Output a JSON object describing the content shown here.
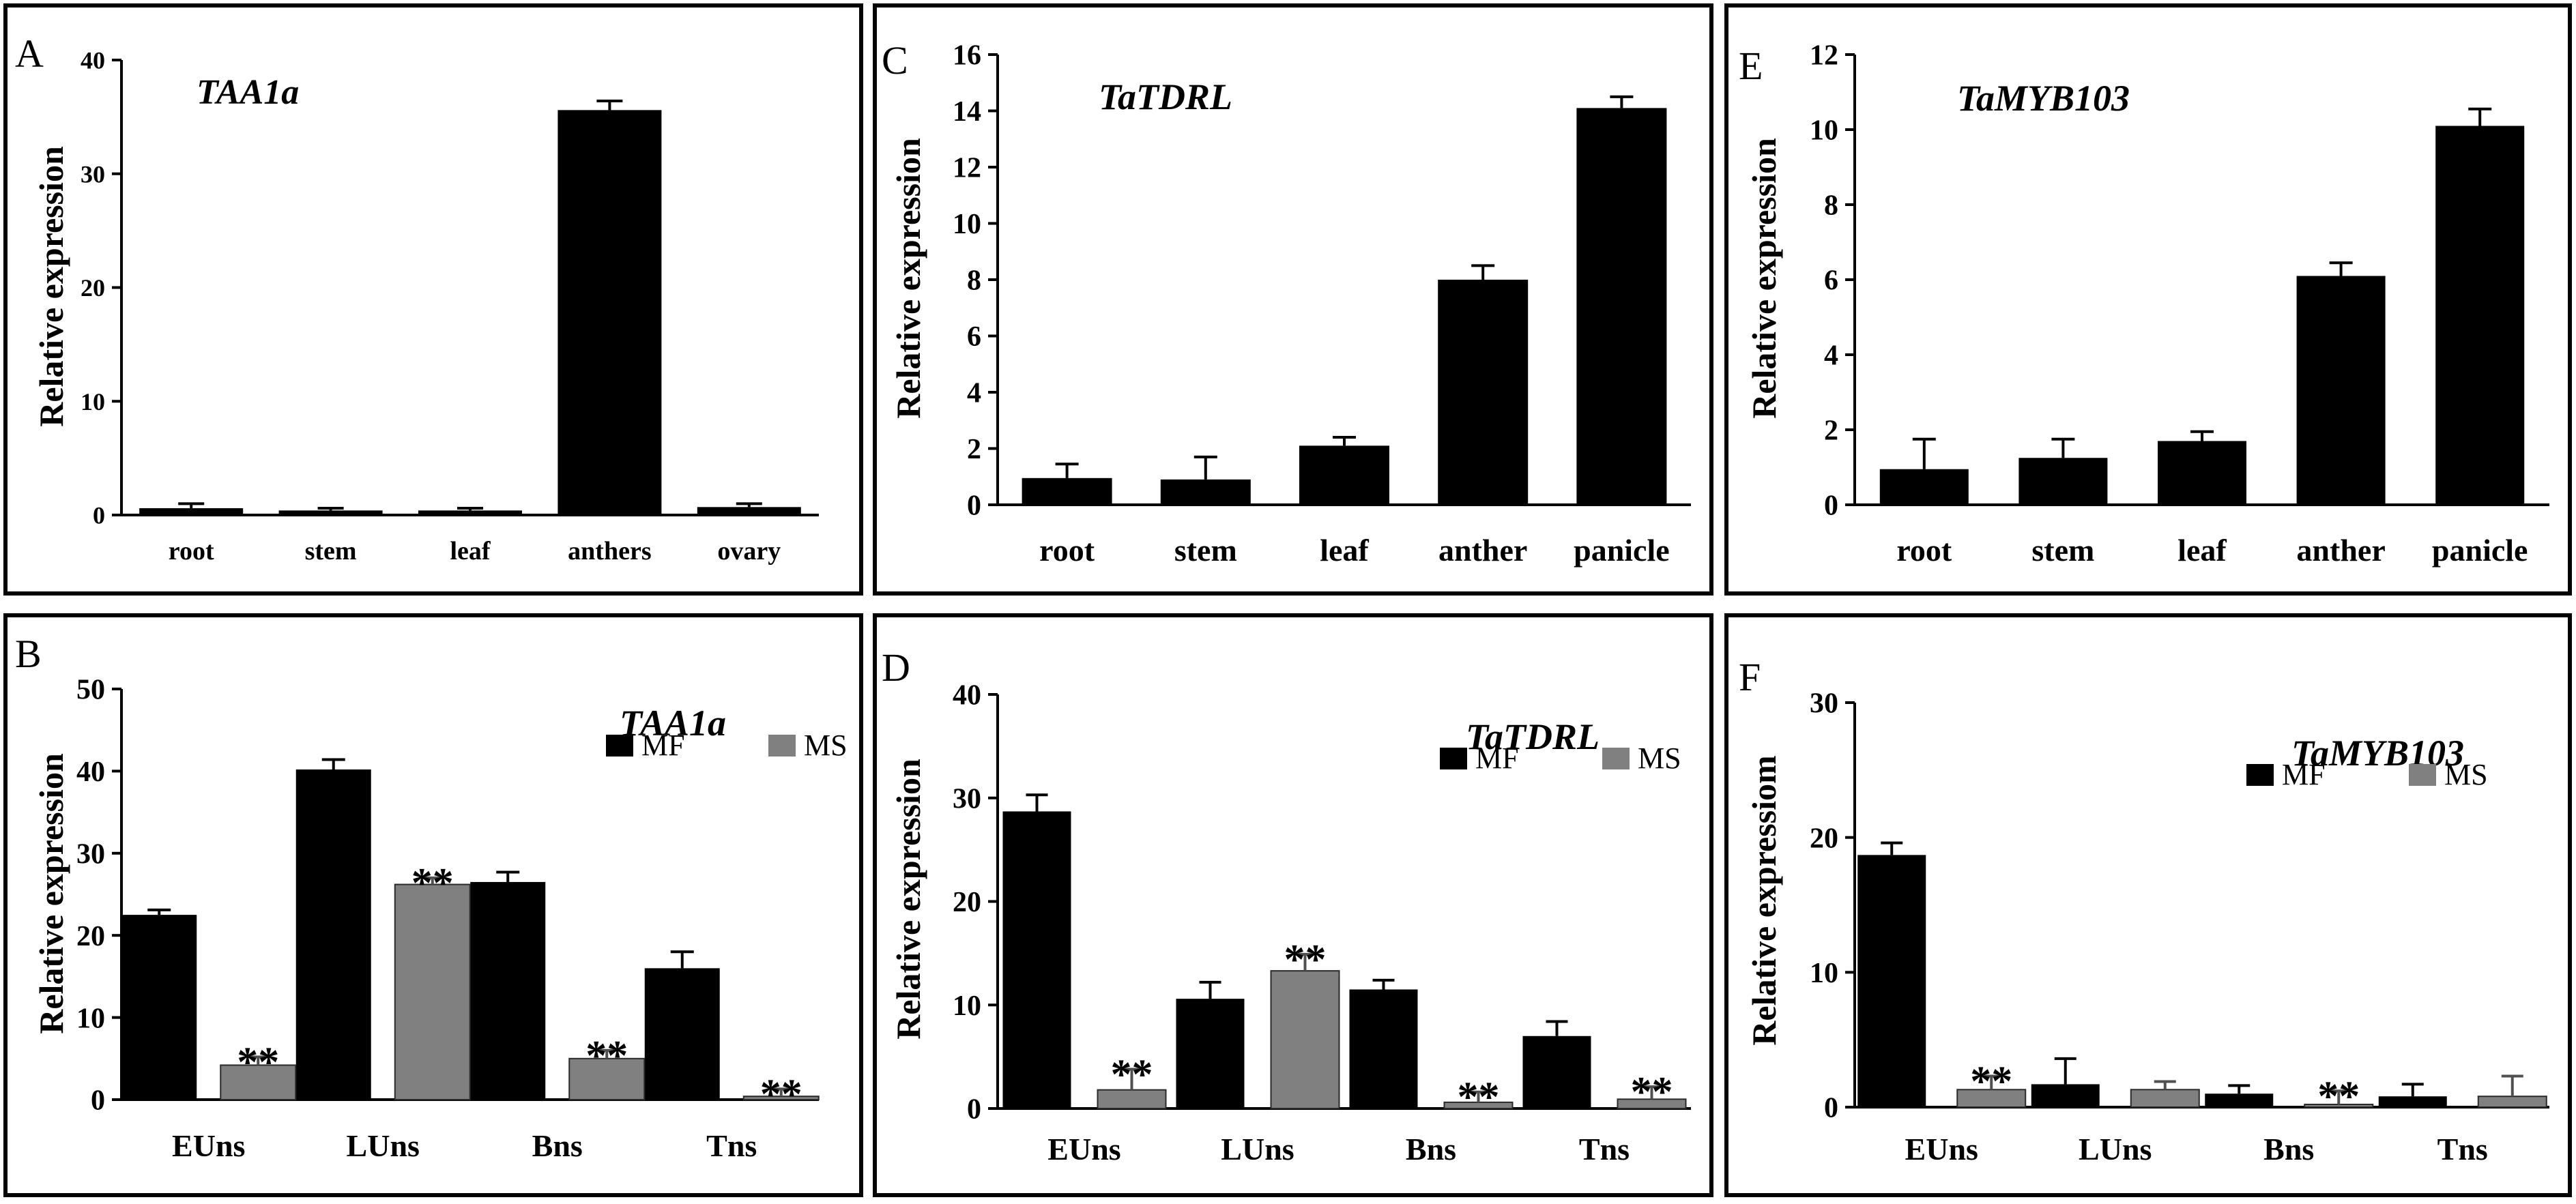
{
  "colors": {
    "mf": "#000000",
    "ms": "#808080",
    "ms_bar_edge": "#2a2a2a",
    "ms_err": "#505050",
    "frame": "#000000"
  },
  "chart_data": [
    {
      "panel": "A",
      "type": "bar",
      "title": "TAA1a",
      "ylabel": "Relative expression",
      "xlabel": "",
      "ylim": [
        0,
        40
      ],
      "yticks": [
        "0",
        "10",
        "20",
        "30",
        "40"
      ],
      "categories": [
        "root",
        "stem",
        "leaf",
        "anthers",
        "ovary"
      ],
      "series": [
        {
          "name": "",
          "values": [
            0.6,
            0.4,
            0.4,
            35.6,
            0.7
          ],
          "errors": [
            0.4,
            0.2,
            0.2,
            0.8,
            0.3
          ]
        }
      ],
      "significance": [],
      "legend": []
    },
    {
      "panel": "B",
      "type": "bar",
      "title": "TAA1a",
      "ylabel": "Relative expression",
      "xlabel": "",
      "ylim": [
        0,
        50
      ],
      "yticks": [
        "0",
        "10",
        "20",
        "30",
        "40",
        "50"
      ],
      "categories": [
        "EUns",
        "LUns",
        "Bns",
        "Tns"
      ],
      "series": [
        {
          "name": "MF",
          "values": [
            22.5,
            40.2,
            26.5,
            16.0
          ],
          "errors": [
            0.6,
            1.2,
            1.2,
            2.0
          ]
        },
        {
          "name": "MS",
          "values": [
            4.2,
            26.2,
            5.0,
            0.4
          ],
          "errors": [
            1.0,
            0.8,
            1.0,
            0.9
          ]
        }
      ],
      "significance": [
        "**",
        "**",
        "**",
        "**"
      ],
      "legend": [
        "MF",
        "MS"
      ]
    },
    {
      "panel": "C",
      "type": "bar",
      "title": "TaTDRL",
      "ylabel": "Relative expression",
      "xlabel": "",
      "ylim": [
        0,
        16
      ],
      "yticks": [
        "0",
        "2",
        "4",
        "6",
        "8",
        "10",
        "12",
        "14",
        "16"
      ],
      "categories": [
        "root",
        "stem",
        "leaf",
        "anther",
        "panicle"
      ],
      "series": [
        {
          "name": "",
          "values": [
            0.95,
            0.9,
            2.1,
            8.0,
            14.1
          ],
          "errors": [
            0.5,
            0.8,
            0.3,
            0.5,
            0.4
          ]
        }
      ],
      "significance": [],
      "legend": []
    },
    {
      "panel": "D",
      "type": "bar",
      "title": "TaTDRL",
      "ylabel": "Relative expression",
      "xlabel": "",
      "ylim": [
        0,
        40
      ],
      "yticks": [
        "0",
        "10",
        "20",
        "30",
        "40"
      ],
      "categories": [
        "EUns",
        "LUns",
        "Bns",
        "Tns"
      ],
      "series": [
        {
          "name": "MF",
          "values": [
            28.7,
            10.6,
            11.5,
            7.0
          ],
          "errors": [
            1.6,
            1.6,
            0.9,
            1.4
          ]
        },
        {
          "name": "MS",
          "values": [
            1.8,
            13.3,
            0.6,
            0.9
          ],
          "errors": [
            2.0,
            1.6,
            1.0,
            1.2
          ]
        }
      ],
      "significance": [
        "**",
        "**",
        "**",
        "**"
      ],
      "legend": [
        "MF",
        "MS"
      ]
    },
    {
      "panel": "E",
      "type": "bar",
      "title": "TaMYB103",
      "ylabel": "Relative expression",
      "xlabel": "",
      "ylim": [
        0,
        12
      ],
      "yticks": [
        "0",
        "2",
        "4",
        "6",
        "8",
        "10",
        "12"
      ],
      "categories": [
        "root",
        "stem",
        "leaf",
        "anther",
        "panicle"
      ],
      "series": [
        {
          "name": "",
          "values": [
            0.95,
            1.25,
            1.7,
            6.1,
            10.1
          ],
          "errors": [
            0.8,
            0.5,
            0.25,
            0.35,
            0.45
          ]
        }
      ],
      "significance": [],
      "legend": []
    },
    {
      "panel": "F",
      "type": "bar",
      "title": "TaMYB103",
      "ylabel": "Relative expressiom",
      "xlabel": "",
      "ylim": [
        0,
        30
      ],
      "yticks": [
        "0",
        "10",
        "20",
        "30"
      ],
      "categories": [
        "EUns",
        "LUns",
        "Bns",
        "Tns"
      ],
      "series": [
        {
          "name": "MF",
          "values": [
            18.7,
            1.7,
            1.0,
            0.8
          ],
          "errors": [
            0.9,
            1.9,
            0.6,
            0.9
          ]
        },
        {
          "name": "MS",
          "values": [
            1.3,
            1.3,
            0.2,
            0.8
          ],
          "errors": [
            1.0,
            0.6,
            1.0,
            1.5
          ]
        }
      ],
      "significance": [
        "**",
        "",
        "**",
        ""
      ],
      "legend": [
        "MF",
        "MS"
      ]
    }
  ]
}
